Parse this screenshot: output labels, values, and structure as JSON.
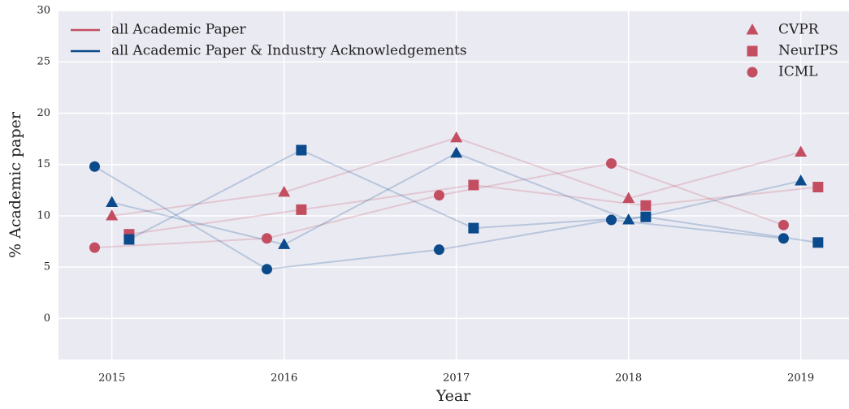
{
  "chart_data": {
    "type": "line",
    "x_label": "Year",
    "y_label": "% Academic paper",
    "xlim": [
      2014.69,
      2019.28
    ],
    "ylim": [
      -4,
      30
    ],
    "xticks": [
      2015,
      2016,
      2017,
      2018,
      2019
    ],
    "yticks": [
      0,
      5,
      10,
      15,
      20,
      25,
      30
    ],
    "grid": true,
    "markers": [
      {
        "name": "CVPR",
        "marker": "triangle"
      },
      {
        "name": "NeurIPS",
        "marker": "square"
      },
      {
        "name": "ICML",
        "marker": "circle"
      }
    ],
    "series": [
      {
        "name": "all Academic Paper",
        "color": "#c44e61",
        "venues": [
          {
            "x": [
              2015,
              2016,
              2017,
              2018,
              2019
            ],
            "values": [
              10.0,
              12.3,
              17.6,
              11.7,
              16.2
            ]
          },
          {
            "x": [
              2015.1,
              2016.1,
              2017.1,
              2018.1,
              2019.1
            ],
            "values": [
              8.2,
              10.6,
              13.0,
              11.0,
              12.8
            ]
          },
          {
            "x": [
              2014.9,
              2015.9,
              2016.9,
              2017.9,
              2018.9
            ],
            "values": [
              6.9,
              7.8,
              12.0,
              15.1,
              9.1
            ]
          }
        ]
      },
      {
        "name": "all Academic Paper & Industry Acknowledgements",
        "color": "#0b4a8b",
        "venues": [
          {
            "x": [
              2015,
              2016,
              2017,
              2018,
              2019
            ],
            "values": [
              11.3,
              7.2,
              16.1,
              9.6,
              13.4
            ]
          },
          {
            "x": [
              2015.1,
              2016.1,
              2017.1,
              2018.1,
              2019.1
            ],
            "values": [
              7.7,
              16.4,
              8.8,
              9.9,
              7.4
            ]
          },
          {
            "x": [
              2014.9,
              2015.9,
              2016.9,
              2017.9,
              2018.9
            ],
            "values": [
              14.8,
              4.8,
              6.7,
              9.6,
              7.8
            ]
          }
        ]
      }
    ]
  }
}
